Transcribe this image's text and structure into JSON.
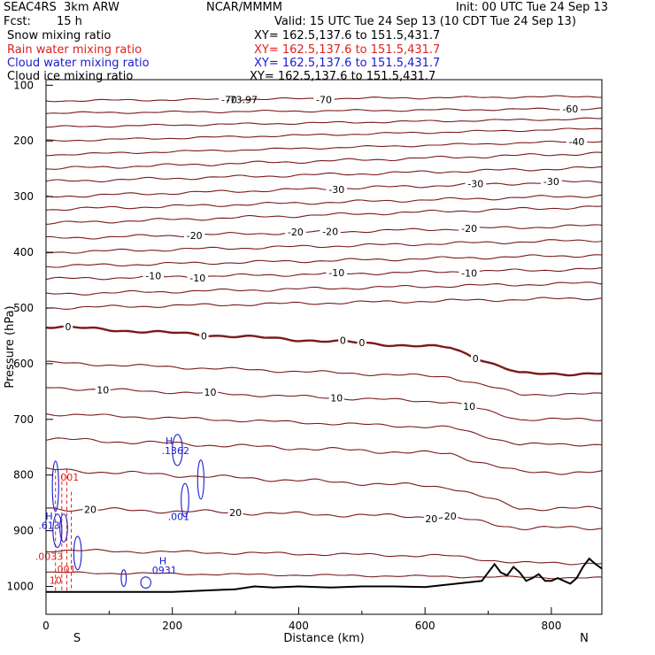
{
  "header": {
    "model": "SEAC4RS  3km ARW",
    "org": "NCAR/MMMM",
    "init": "Init: 00 UTC Tue 24 Sep 13",
    "fcst_label": "Fcst:",
    "fcst_value": "15 h",
    "valid": "Valid: 15 UTC Tue 24 Sep 13 (10 CDT Tue 24 Sep 13)",
    "fields": [
      {
        "name": "Snow mixing ratio",
        "xy": "XY= 162.5,137.6 to 151.5,431.7",
        "color": "#000000"
      },
      {
        "name": "Rain water mixing ratio",
        "xy": "XY= 162.5,137.6 to 151.5,431.7",
        "color": "#e02020"
      },
      {
        "name": "Cloud water mixing ratio",
        "xy": "XY= 162.5,137.6 to 151.5,431.7",
        "color": "#1a1ad0"
      },
      {
        "name": "Cloud ice mixing ratio",
        "xy": "XY= 162.5,137.6 to 151.5,431.7",
        "color": "#000000"
      }
    ]
  },
  "chart_data": {
    "type": "line",
    "title": "",
    "xlabel": "Distance (km)",
    "ylabel": "Pressure (hPa)",
    "xlim": [
      0,
      880
    ],
    "ylim": [
      1050,
      90
    ],
    "x_ticks": [
      0,
      200,
      400,
      600,
      800
    ],
    "y_ticks": [
      100,
      200,
      300,
      400,
      500,
      600,
      700,
      800,
      900,
      1000
    ],
    "x_end_labels": {
      "left": "S",
      "right": "N"
    },
    "isotherm_color": "#7a1a1a",
    "terrain_color": "#000000",
    "cloud_color": "#1a1ad0",
    "rain_color": "#e02020",
    "isotherms": [
      {
        "p0": 128,
        "p1": 120,
        "amp": 2,
        "labels": [
          {
            "x": 290,
            "text": "-70"
          },
          {
            "x": 440,
            "text": "-70"
          }
        ]
      },
      {
        "p0": 150,
        "p1": 142,
        "amp": 2,
        "labels": [
          {
            "x": 830,
            "text": "-60"
          }
        ]
      },
      {
        "p0": 175,
        "p1": 160,
        "amp": 2,
        "labels": []
      },
      {
        "p0": 200,
        "p1": 178,
        "amp": 2,
        "labels": []
      },
      {
        "p0": 225,
        "p1": 200,
        "amp": 2,
        "labels": [
          {
            "x": 840,
            "text": "-40"
          }
        ]
      },
      {
        "p0": 250,
        "p1": 222,
        "amp": 3,
        "labels": []
      },
      {
        "p0": 273,
        "p1": 248,
        "amp": 3,
        "labels": []
      },
      {
        "p0": 300,
        "p1": 272,
        "amp": 3,
        "labels": [
          {
            "x": 460,
            "text": "-30"
          },
          {
            "x": 680,
            "text": "-30"
          },
          {
            "x": 800,
            "text": "-30"
          }
        ]
      },
      {
        "p0": 323,
        "p1": 298,
        "amp": 3,
        "labels": []
      },
      {
        "p0": 348,
        "p1": 318,
        "amp": 3,
        "labels": []
      },
      {
        "p0": 375,
        "p1": 352,
        "amp": 3,
        "labels": [
          {
            "x": 235,
            "text": "-20"
          },
          {
            "x": 395,
            "text": "-20"
          },
          {
            "x": 450,
            "text": "-20"
          },
          {
            "x": 670,
            "text": "-20"
          }
        ]
      },
      {
        "p0": 400,
        "p1": 378,
        "amp": 3,
        "labels": []
      },
      {
        "p0": 425,
        "p1": 405,
        "amp": 3,
        "labels": []
      },
      {
        "p0": 448,
        "p1": 430,
        "amp": 3,
        "labels": [
          {
            "x": 170,
            "text": "-10"
          },
          {
            "x": 240,
            "text": "-10"
          },
          {
            "x": 460,
            "text": "-10"
          },
          {
            "x": 670,
            "text": "-10"
          }
        ]
      },
      {
        "p0": 475,
        "p1": 455,
        "amp": 3,
        "labels": []
      },
      {
        "p0": 500,
        "p1": 482,
        "amp": 3,
        "labels": []
      },
      {
        "p0": 533,
        "p1": 618,
        "amp": 3,
        "bold": true,
        "labels": [
          {
            "x": 35,
            "text": "0"
          },
          {
            "x": 250,
            "text": "0"
          },
          {
            "x": 470,
            "text": "0"
          },
          {
            "x": 500,
            "text": "0"
          },
          {
            "x": 680,
            "text": "0"
          }
        ]
      },
      {
        "p0": 598,
        "p1": 655,
        "amp": 3,
        "labels": []
      },
      {
        "p0": 643,
        "p1": 700,
        "amp": 3,
        "labels": [
          {
            "x": 90,
            "text": "10"
          },
          {
            "x": 260,
            "text": "10"
          },
          {
            "x": 460,
            "text": "10"
          },
          {
            "x": 670,
            "text": "10"
          }
        ]
      },
      {
        "p0": 690,
        "p1": 745,
        "amp": 3,
        "labels": []
      },
      {
        "p0": 735,
        "p1": 795,
        "amp": 4,
        "labels": []
      },
      {
        "p0": 790,
        "p1": 860,
        "amp": 4,
        "labels": []
      },
      {
        "p0": 860,
        "p1": 895,
        "amp": 4,
        "labels": [
          {
            "x": 70,
            "text": "20"
          },
          {
            "x": 300,
            "text": "20"
          },
          {
            "x": 610,
            "text": "20"
          },
          {
            "x": 640,
            "text": "20"
          }
        ]
      },
      {
        "p0": 935,
        "p1": 958,
        "amp": 3,
        "labels": []
      },
      {
        "p0": 975,
        "p1": 985,
        "amp": 2,
        "labels": []
      }
    ],
    "extra_labels": [
      {
        "x": 310,
        "p": 132,
        "text": "-73.97",
        "color": "#000000"
      },
      {
        "x": 195,
        "p": 745,
        "text": "H",
        "color": "#1a1ad0"
      },
      {
        "x": 205,
        "p": 762,
        "text": ".1362",
        "color": "#1a1ad0"
      },
      {
        "x": 210,
        "p": 881,
        "text": ".001",
        "color": "#1a1ad0"
      },
      {
        "x": 185,
        "p": 960,
        "text": "H",
        "color": "#1a1ad0"
      },
      {
        "x": 185,
        "p": 977,
        "text": ".0931",
        "color": "#1a1ad0"
      },
      {
        "x": 5,
        "p": 897,
        "text": ".613",
        "color": "#1a1ad0"
      },
      {
        "x": 5,
        "p": 880,
        "text": "H",
        "color": "#1a1ad0"
      },
      {
        "x": 35,
        "p": 810,
        "text": ".001",
        "color": "#e02020"
      },
      {
        "x": 5,
        "p": 952,
        "text": ".0033",
        "color": "#e02020"
      },
      {
        "x": 30,
        "p": 975,
        "text": ".001",
        "color": "#e02020"
      },
      {
        "x": 15,
        "p": 995,
        "text": "10",
        "color": "#e02020"
      }
    ],
    "terrain": [
      [
        0,
        1010
      ],
      [
        100,
        1010
      ],
      [
        200,
        1010
      ],
      [
        300,
        1005
      ],
      [
        330,
        1000
      ],
      [
        360,
        1002
      ],
      [
        400,
        1000
      ],
      [
        450,
        1002
      ],
      [
        500,
        1000
      ],
      [
        550,
        1000
      ],
      [
        600,
        1001
      ],
      [
        650,
        995
      ],
      [
        690,
        990
      ],
      [
        700,
        975
      ],
      [
        710,
        960
      ],
      [
        720,
        975
      ],
      [
        730,
        980
      ],
      [
        740,
        965
      ],
      [
        750,
        975
      ],
      [
        760,
        990
      ],
      [
        770,
        985
      ],
      [
        780,
        978
      ],
      [
        790,
        990
      ],
      [
        800,
        990
      ],
      [
        810,
        985
      ],
      [
        820,
        990
      ],
      [
        830,
        995
      ],
      [
        840,
        985
      ],
      [
        850,
        965
      ],
      [
        860,
        950
      ],
      [
        870,
        960
      ],
      [
        880,
        968
      ]
    ],
    "cloud_contours": [
      {
        "cx": 208,
        "cp": 755,
        "rx": 8,
        "rp": 28
      },
      {
        "cx": 220,
        "cp": 845,
        "rx": 6,
        "rp": 30
      },
      {
        "cx": 245,
        "cp": 808,
        "rx": 5,
        "rp": 35
      },
      {
        "cx": 15,
        "cp": 820,
        "rx": 5,
        "rp": 45
      },
      {
        "cx": 18,
        "cp": 900,
        "rx": 7,
        "rp": 30
      },
      {
        "cx": 28,
        "cp": 895,
        "rx": 6,
        "rp": 25
      },
      {
        "cx": 50,
        "cp": 940,
        "rx": 6,
        "rp": 30
      },
      {
        "cx": 123,
        "cp": 985,
        "rx": 4,
        "rp": 15
      },
      {
        "cx": 158,
        "cp": 993,
        "rx": 8,
        "rp": 10
      }
    ],
    "rain_contours": [
      {
        "x": 15,
        "p0": 790,
        "p1": 1010
      },
      {
        "x": 25,
        "p0": 800,
        "p1": 1010
      },
      {
        "x": 33,
        "p0": 790,
        "p1": 1010
      },
      {
        "x": 40,
        "p0": 830,
        "p1": 1010
      }
    ]
  }
}
